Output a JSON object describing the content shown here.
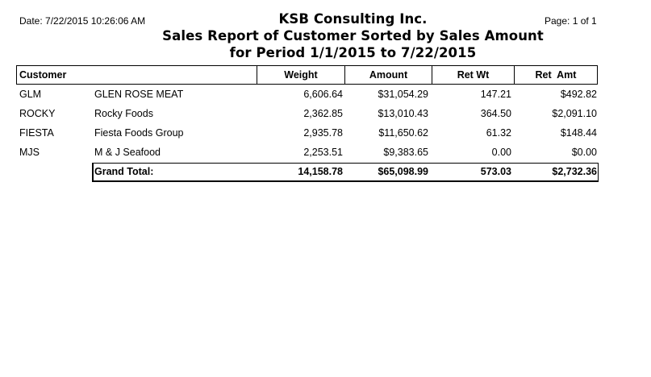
{
  "header": {
    "date": "Date: 7/22/2015 10:26:06 AM",
    "page": "Page: 1 of 1",
    "company": "KSB Consulting Inc.",
    "title": "Sales Report of Customer Sorted by Sales Amount",
    "period": "for Period 1/1/2015 to 7/22/2015"
  },
  "columns": {
    "customer": "Customer",
    "weight": "Weight",
    "amount": "Amount",
    "ret_wt": "Ret Wt",
    "ret_amt": "Ret  Amt"
  },
  "rows": [
    {
      "code": "GLM",
      "name": "GLEN ROSE MEAT",
      "weight": "6,606.64",
      "amount": "$31,054.29",
      "ret_wt": "147.21",
      "ret_amt": "$492.82"
    },
    {
      "code": "ROCKY",
      "name": "Rocky Foods",
      "weight": "2,362.85",
      "amount": "$13,010.43",
      "ret_wt": "364.50",
      "ret_amt": "$2,091.10"
    },
    {
      "code": "FIESTA",
      "name": "Fiesta Foods Group",
      "weight": "2,935.78",
      "amount": "$11,650.62",
      "ret_wt": "61.32",
      "ret_amt": "$148.44"
    },
    {
      "code": "MJS",
      "name": "M & J Seafood",
      "weight": "2,253.51",
      "amount": "$9,383.65",
      "ret_wt": "0.00",
      "ret_amt": "$0.00"
    }
  ],
  "totals": {
    "label": "Grand Total:",
    "weight": "14,158.78",
    "amount": "$65,098.99",
    "ret_wt": "573.03",
    "ret_amt": "$2,732.36"
  }
}
